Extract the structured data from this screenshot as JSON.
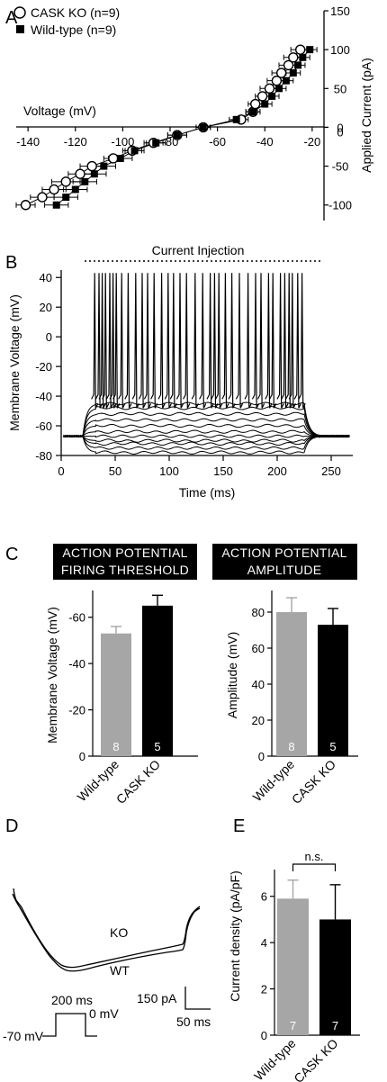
{
  "panels": {
    "A": "A",
    "B": "B",
    "C": "C",
    "D": "D",
    "E": "E"
  },
  "chart_data": [
    {
      "id": "A",
      "type": "scatter",
      "xlabel": "Voltage (mV)",
      "ylabel": "Applied Current (pA)",
      "xlim": [
        -145,
        -15
      ],
      "ylim": [
        -120,
        150
      ],
      "x_ticks": [
        -140,
        -120,
        -100,
        -80,
        -60,
        -40,
        -20
      ],
      "y_ticks": [
        -100,
        -50,
        0,
        50,
        100,
        150
      ],
      "legend_position": "top-left",
      "series": [
        {
          "name": "CASK KO (n=9)",
          "marker": "open-circle",
          "current": [
            -100,
            -90,
            -80,
            -70,
            -60,
            -50,
            -40,
            -30,
            -20,
            -10,
            0,
            10,
            20,
            30,
            40,
            50,
            60,
            70,
            80,
            90,
            100
          ],
          "voltage": [
            -141,
            -134,
            -129,
            -124,
            -118,
            -113,
            -104,
            -96,
            -87,
            -77,
            -66,
            -50,
            -45,
            -44,
            -41,
            -38,
            -35,
            -33,
            -30,
            -28,
            -25
          ],
          "xerr": [
            4,
            5,
            5,
            6,
            5,
            5,
            4,
            4,
            4,
            4,
            3,
            3,
            3,
            3,
            3,
            4,
            4,
            4,
            4,
            4,
            4
          ]
        },
        {
          "name": "Wild-type (n=9)",
          "marker": "filled-square",
          "current": [
            -100,
            -90,
            -80,
            -70,
            -60,
            -50,
            -40,
            -30,
            -20,
            -10,
            0,
            10,
            20,
            30,
            40,
            50,
            60,
            70,
            80,
            90,
            100
          ],
          "voltage": [
            -128,
            -124,
            -120,
            -116,
            -112,
            -108,
            -101,
            -95,
            -86,
            -77,
            -66,
            -52,
            -45,
            -40,
            -37,
            -34,
            -31,
            -28,
            -26,
            -24,
            -21
          ],
          "xerr": [
            5,
            5,
            5,
            5,
            5,
            5,
            5,
            4,
            4,
            4,
            3,
            3,
            3,
            3,
            3,
            3,
            3,
            3,
            3,
            3,
            3
          ]
        }
      ]
    },
    {
      "id": "B",
      "type": "line",
      "annotation": "Current Injection",
      "xlabel": "Time (ms)",
      "ylabel": "Membrane Voltage (mV)",
      "xlim": [
        0,
        270
      ],
      "ylim": [
        -80,
        45
      ],
      "x_ticks": [
        0,
        50,
        100,
        150,
        200,
        250
      ],
      "y_ticks": [
        -80,
        -60,
        -40,
        -20,
        0,
        20,
        40
      ],
      "stimulus_ms": [
        20,
        225
      ],
      "rest_mV": -67,
      "subthreshold_plateaus_mV": [
        -78,
        -75,
        -72,
        -70,
        -67,
        -64,
        -60,
        -56,
        -52,
        -48,
        -45
      ],
      "spike_times_ms": [
        31,
        35,
        38,
        41,
        45,
        48,
        51,
        56,
        62,
        69,
        75,
        80,
        86,
        93,
        99,
        104,
        110,
        116,
        124,
        131,
        138,
        142,
        146,
        152,
        158,
        165,
        173,
        180,
        185,
        192,
        196,
        203,
        207,
        211,
        214,
        219,
        223
      ],
      "spike_peak_mV": 43,
      "spike_trough_mV": -45
    },
    {
      "id": "C1",
      "type": "bar",
      "title": "ACTION POTENTIAL FIRING THRESHOLD",
      "title_lines": [
        "ACTION POTENTIAL",
        "FIRING THRESHOLD"
      ],
      "ylabel": "Membrane Voltage (mV)",
      "ylim": [
        0,
        -70
      ],
      "y_ticks": [
        0,
        -20,
        -40,
        -60
      ],
      "y_tick_labels": [
        "0",
        "-20",
        "-40",
        "-60"
      ],
      "categories": [
        "Wild-type",
        "CASK KO"
      ],
      "values": [
        -53,
        -65
      ],
      "errors": [
        3,
        4.5
      ],
      "n": [
        "8",
        "5"
      ],
      "colors": [
        "#a6a6a6",
        "#000000"
      ]
    },
    {
      "id": "C2",
      "type": "bar",
      "title": "ACTION POTENTIAL AMPLITUDE",
      "title_lines": [
        "ACTION POTENTIAL",
        "AMPLITUDE"
      ],
      "ylabel": "Amplitude (mV)",
      "ylim": [
        0,
        90
      ],
      "y_ticks": [
        0,
        20,
        40,
        60,
        80
      ],
      "y_tick_labels": [
        "0",
        "20",
        "40",
        "60",
        "80"
      ],
      "categories": [
        "Wild-type",
        "CASK KO"
      ],
      "values": [
        80,
        73
      ],
      "errors": [
        8,
        9
      ],
      "n": [
        "8",
        "5"
      ],
      "colors": [
        "#a6a6a6",
        "#000000"
      ]
    },
    {
      "id": "D",
      "type": "line",
      "traces": [
        "KO",
        "WT"
      ],
      "scale_current": "150 pA",
      "scale_time": "50 ms",
      "protocol_duration": "200 ms",
      "holding": "-70 mV",
      "step": "0 mV"
    },
    {
      "id": "E",
      "type": "bar",
      "ylabel": "Current density (pA/pF)",
      "ylim": [
        0,
        7
      ],
      "y_ticks": [
        0,
        2,
        4,
        6
      ],
      "y_tick_labels": [
        "0",
        "2",
        "4",
        "6"
      ],
      "categories": [
        "Wild-type",
        "CASK KO"
      ],
      "values": [
        5.9,
        5.0
      ],
      "errors": [
        0.8,
        1.5
      ],
      "n": [
        "7",
        "7"
      ],
      "significance": "n.s.",
      "colors": [
        "#a6a6a6",
        "#000000"
      ]
    }
  ]
}
